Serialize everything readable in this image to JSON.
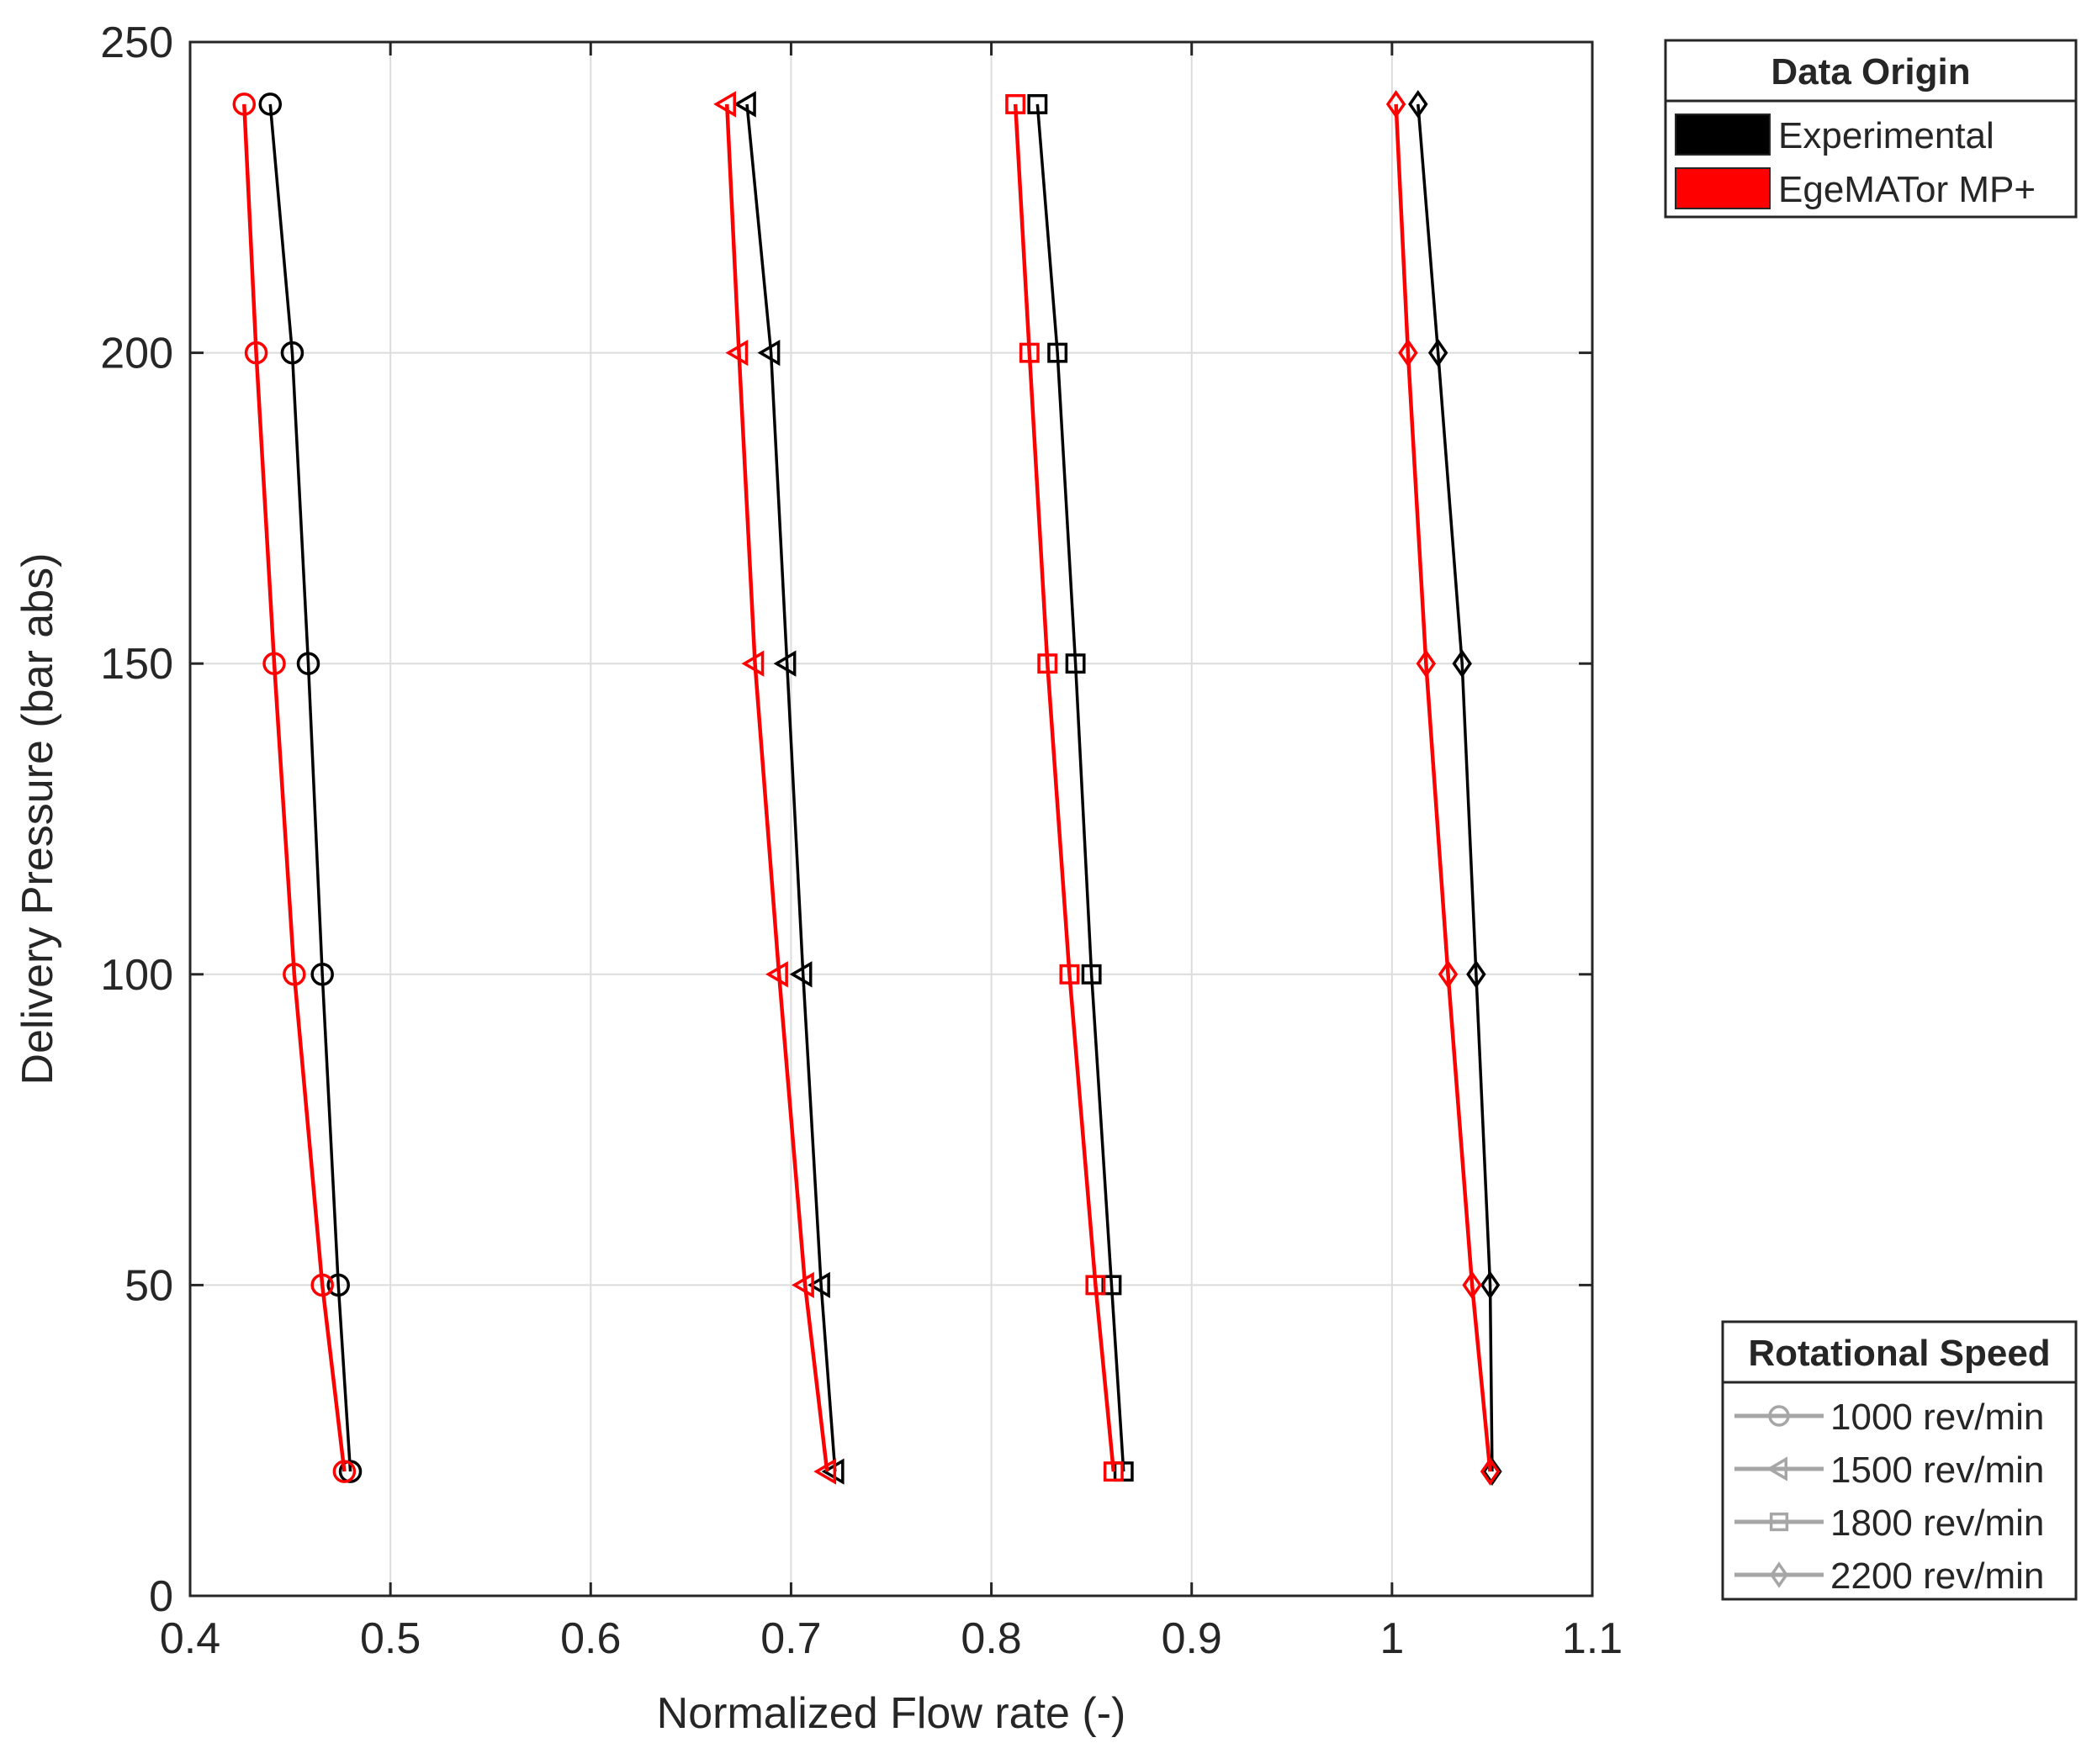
{
  "chart_data": {
    "type": "line",
    "xlabel": "Normalized Flow rate (-)",
    "ylabel": "Delivery Pressure (bar abs)",
    "xlim": [
      0.4,
      1.1
    ],
    "ylim": [
      0,
      250
    ],
    "xticks": [
      0.4,
      0.5,
      0.6,
      0.7,
      0.8,
      0.9,
      1.0,
      1.1
    ],
    "xtick_labels": [
      "0.4",
      "0.5",
      "0.6",
      "0.7",
      "0.8",
      "0.9",
      "1",
      "1.1"
    ],
    "yticks": [
      0,
      50,
      100,
      150,
      200,
      250
    ],
    "ytick_labels": [
      "0",
      "50",
      "100",
      "150",
      "200",
      "250"
    ],
    "grid": true,
    "legends": [
      {
        "title": "Data Origin",
        "placement": "outside top-right",
        "entries": [
          {
            "label": "Experimental",
            "color": "#000000"
          },
          {
            "label": "EgeMATor MP+",
            "color": "#ff0000"
          }
        ]
      },
      {
        "title": "Rotational Speed",
        "placement": "outside bottom-right",
        "entries": [
          {
            "label": "1000 rev/min",
            "marker": "circle",
            "color": "#a6a6a6"
          },
          {
            "label": "1500 rev/min",
            "marker": "triangle-left",
            "color": "#a6a6a6"
          },
          {
            "label": "1800 rev/min",
            "marker": "square",
            "color": "#a6a6a6"
          },
          {
            "label": "2200 rev/min",
            "marker": "diamond",
            "color": "#a6a6a6"
          }
        ]
      }
    ],
    "series": [
      {
        "origin": "Experimental",
        "speed": "1000 rev/min",
        "marker": "circle",
        "color": "#000000",
        "x": [
          0.48,
          0.474,
          0.466,
          0.459,
          0.451,
          0.44
        ],
        "y": [
          20,
          50,
          100,
          150,
          200,
          240
        ]
      },
      {
        "origin": "EgeMATor MP+",
        "speed": "1000 rev/min",
        "marker": "circle",
        "color": "#ff0000",
        "x": [
          0.477,
          0.466,
          0.452,
          0.442,
          0.433,
          0.427
        ],
        "y": [
          20,
          50,
          100,
          150,
          200,
          240
        ]
      },
      {
        "origin": "Experimental",
        "speed": "1500 rev/min",
        "marker": "triangle-left",
        "color": "#000000",
        "x": [
          0.722,
          0.715,
          0.706,
          0.698,
          0.69,
          0.678
        ],
        "y": [
          20,
          50,
          100,
          150,
          200,
          240
        ]
      },
      {
        "origin": "EgeMATor MP+",
        "speed": "1500 rev/min",
        "marker": "triangle-left",
        "color": "#ff0000",
        "x": [
          0.718,
          0.707,
          0.694,
          0.682,
          0.674,
          0.668
        ],
        "y": [
          20,
          50,
          100,
          150,
          200,
          240
        ]
      },
      {
        "origin": "Experimental",
        "speed": "1800 rev/min",
        "marker": "square",
        "color": "#000000",
        "x": [
          0.866,
          0.86,
          0.85,
          0.842,
          0.833,
          0.823
        ],
        "y": [
          20,
          50,
          100,
          150,
          200,
          240
        ]
      },
      {
        "origin": "EgeMATor MP+",
        "speed": "1800 rev/min",
        "marker": "square",
        "color": "#ff0000",
        "x": [
          0.861,
          0.852,
          0.839,
          0.828,
          0.819,
          0.812
        ],
        "y": [
          20,
          50,
          100,
          150,
          200,
          240
        ]
      },
      {
        "origin": "Experimental",
        "speed": "2200 rev/min",
        "marker": "diamond",
        "color": "#000000",
        "x": [
          1.05,
          1.049,
          1.042,
          1.035,
          1.023,
          1.013
        ],
        "y": [
          20,
          50,
          100,
          150,
          200,
          240
        ]
      },
      {
        "origin": "EgeMATor MP+",
        "speed": "2200 rev/min",
        "marker": "diamond",
        "color": "#ff0000",
        "x": [
          1.049,
          1.04,
          1.028,
          1.017,
          1.008,
          1.002
        ],
        "y": [
          20,
          50,
          100,
          150,
          200,
          240
        ]
      }
    ]
  }
}
